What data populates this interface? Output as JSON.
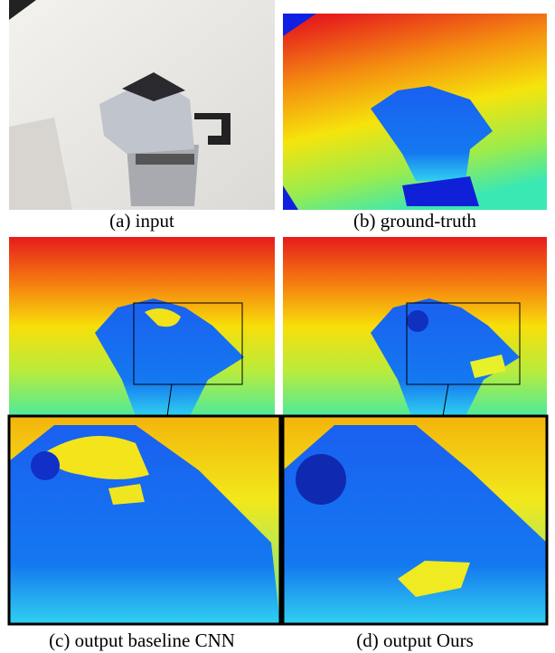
{
  "panels": [
    {
      "caption": "(a) input"
    },
    {
      "caption": "(b) ground-truth"
    },
    {
      "caption": "(c) output baseline CNN"
    },
    {
      "caption": "(d) output Ours"
    }
  ]
}
